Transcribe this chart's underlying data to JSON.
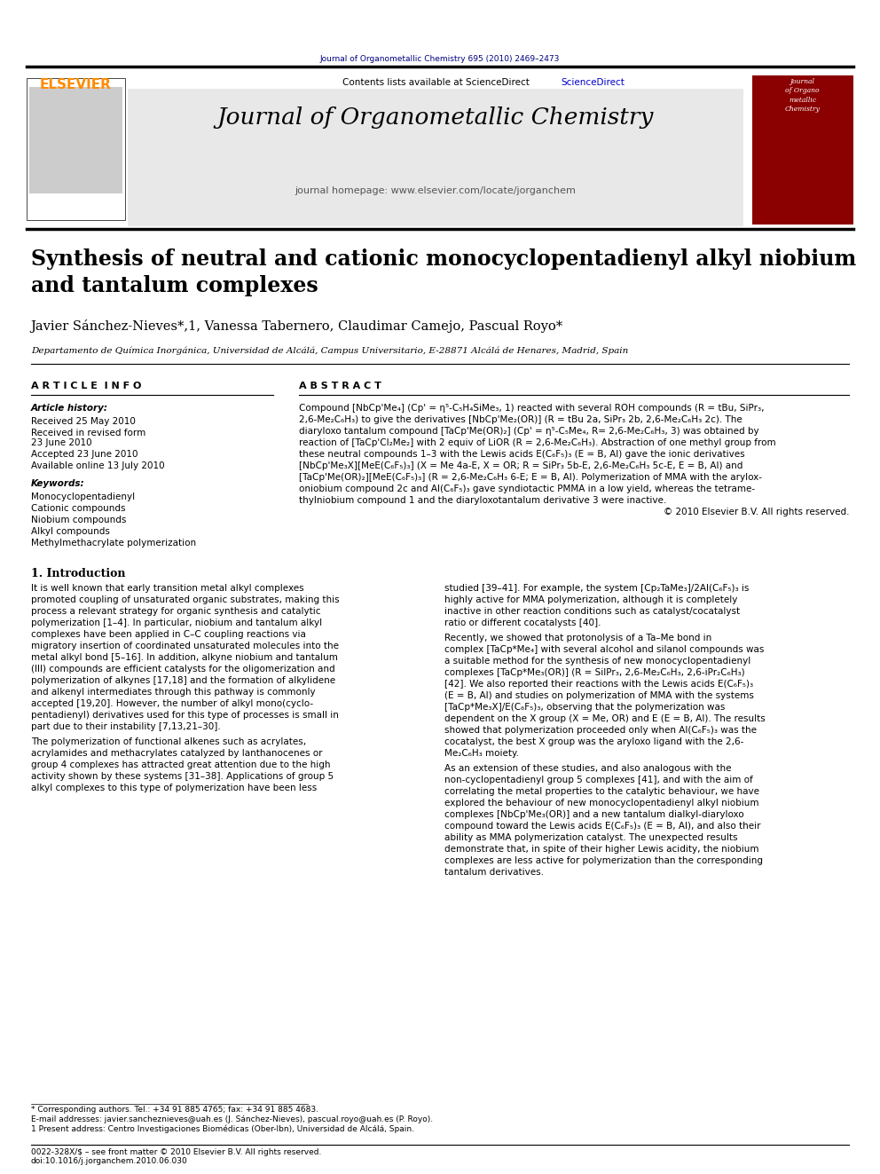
{
  "page_width": 9.92,
  "page_height": 13.23,
  "bg_color": "#ffffff",
  "header_citation": "Journal of Organometallic Chemistry 695 (2010) 2469–2473",
  "header_citation_color": "#000080",
  "journal_name": "Journal of Organometallic Chemistry",
  "journal_homepage": "journal homepage: www.elsevier.com/locate/jorganchem",
  "contents_text": "Contents lists available at ScienceDirect",
  "sciencedirect_color": "#0000cc",
  "elsevier_color": "#ff8c00",
  "header_bg": "#e8e8e8",
  "top_bar_color": "#000000",
  "title": "Synthesis of neutral and cationic monocyclopentadienyl alkyl niobium\nand tantalum complexes",
  "authors": "Javier Sánchez-Nieves*,1, Vanessa Tabernero, Claudimar Camejo, Pascual Royo*",
  "affiliation": "Departamento de Química Inorgánica, Universidad de Alcálá, Campus Universitario, E-28871 Alcálá de Henares, Madrid, Spain",
  "article_info_header": "A R T I C L E  I N F O",
  "abstract_header": "A B S T R A C T",
  "article_history_label": "Article history:",
  "received_label": "Received 25 May 2010",
  "received_revised_label": "Received in revised form\n23 June 2010",
  "accepted_label": "Accepted 23 June 2010",
  "available_label": "Available online 13 July 2010",
  "keywords_header": "Keywords:",
  "keywords": [
    "Monocyclopentadienyl",
    "Cationic compounds",
    "Niobium compounds",
    "Alkyl compounds",
    "Methylmethacrylate polymerization"
  ],
  "abstract_text": "Compound [NbCp'Me4] (Cp' = η5-C5H4SiMe3, 1) reacted with several ROH compounds (R = tBu, SiPr3, 2,6-Me2C6H3) to give the derivatives [NbCp'Me2(OR)] (R = tBu 2a, SiPr3 2b, 2,6-Me2C6H3 2c). The diaryloxo tantalum compound [TaCp'Me(OR)2] (Cp' = η5-C5Me4, R= 2,6-Me2C6H3, 3) was obtained by reaction of [TaCp'Cl2Me2] with 2 equiv of LiOR (R = 2,6-Me2C6H3). Abstraction of one methyl group from these neutral compounds 1–3 with the Lewis acids E(C6F5)3 (E = B, Al) gave the ionic derivatives [NbCp'Me3X][MeE(C6F5)3] (X = Me 4a-E, X = OR; R = SiPr3 5b-E, 2,6-Me2C6H3 5c-E, E = B, Al) and [TaCp'Me(OR)2][MeE(C6F5)3] (R = 2,6-Me2C6H3 6-E; E = B, Al). Polymerization of MMA with the aryloxoniobium compound 2c and Al(C6F5)3 gave syndiotactic PMMA in a low yield, whereas the tetramethylniobium compound 1 and the diaryloxotantalum derivative 3 were inactive.",
  "copyright": "© 2010 Elsevier B.V. All rights reserved.",
  "intro_header": "1. Introduction",
  "intro_text1": "It is well known that early transition metal alkyl complexes promoted coupling of unsaturated organic substrates, making this process a relevant strategy for organic synthesis and catalytic polymerization [1–4]. In particular, niobium and tantalum alkyl complexes have been applied in C–C coupling reactions via migratory insertion of coordinated unsaturated molecules into the metal alkyl bond [5–16]. In addition, alkyne niobium and tantalum (III) compounds are efficient catalysts for the oligomerization and polymerization of alkynes [17,18] and the formation of alkylidene and alkenyl intermediates through this pathway is commonly accepted [19,20]. However, the number of alkyl mono(cyclopentadienyl) derivatives used for this type of processes is small in part due to their instability [7,13,21–30].",
  "intro_text2": "The polymerization of functional alkenes such as acrylates, acrylamides and methacrylates catalyzed by lanthanocenes or group 4 complexes has attracted great attention due to the high activity shown by these systems [31–38]. Applications of group 5 alkyl complexes to this type of polymerization have been less",
  "right_col_text1": "studied [39–41]. For example, the system [Cp2TaMe3]/2Al(C6F5)3 is highly active for MMA polymerization, although it is completely inactive in other reaction conditions such as catalyst/cocatalyst ratio or different cocatalysts [40].",
  "right_col_text2": "Recently, we showed that protonolysis of a Ta–Me bond in complex [TaCp*Me4] with several alcohol and silanol compounds was a suitable method for the synthesis of new monocyclopentadienyl complexes [TaCp*Me3(OR)] (R = SiIPr3, 2,6-Me2C6H3, 2,6-iPr2C6H3) [42]. We also reported their reactions with the Lewis acids E(C6F5)3 (E = B, Al) and studies on polymerization of MMA with the systems [TaCp*Me3X]/E(C6F5)3, observing that the polymerization was dependent on the X group (X = Me, OR) and E (E = B, Al). The results showed that polymerization proceeded only when Al(C6F5)3 was the cocatalyst, the best X group was the aryloxo ligand with the 2,6-Me2C6H3 moiety.",
  "right_col_text3": "As an extension of these studies, and also analogous with the non-cyclopentadienyl group 5 complexes [41], and with the aim of correlating the metal properties to the catalytic behaviour, we have explored the behaviour of new monocyclopentadienyl alkyl niobium complexes [NbCp'Me3(OR)] and a new tantalum dialkyl-diaryloxo compound toward the Lewis acids E(C6F5)3 (E = B, Al), and also their ability as MMA polymerization catalyst. The unexpected results demonstrate that, in spite of their higher Lewis acidity, the niobium complexes are less active for polymerization than the corresponding tantalum derivatives.",
  "footnote_star": "* Corresponding authors. Tel.: +34 91 885 4765; fax: +34 91 885 4683.",
  "footnote_email": "E-mail addresses: javier.sancheznieves@uah.es (J. Sánchez-Nieves), pascual.royo@uah.es (P. Royo).",
  "footnote_1": "1 Present address: Centro Investigaciones Biomédicas (Ober-lbn), Universidad de Alcálá, Spain.",
  "bottom_bar": "0022-328X/$ – see front matter © 2010 Elsevier B.V. All rights reserved.",
  "doi": "doi:10.1016/j.jorganchem.2010.06.030"
}
